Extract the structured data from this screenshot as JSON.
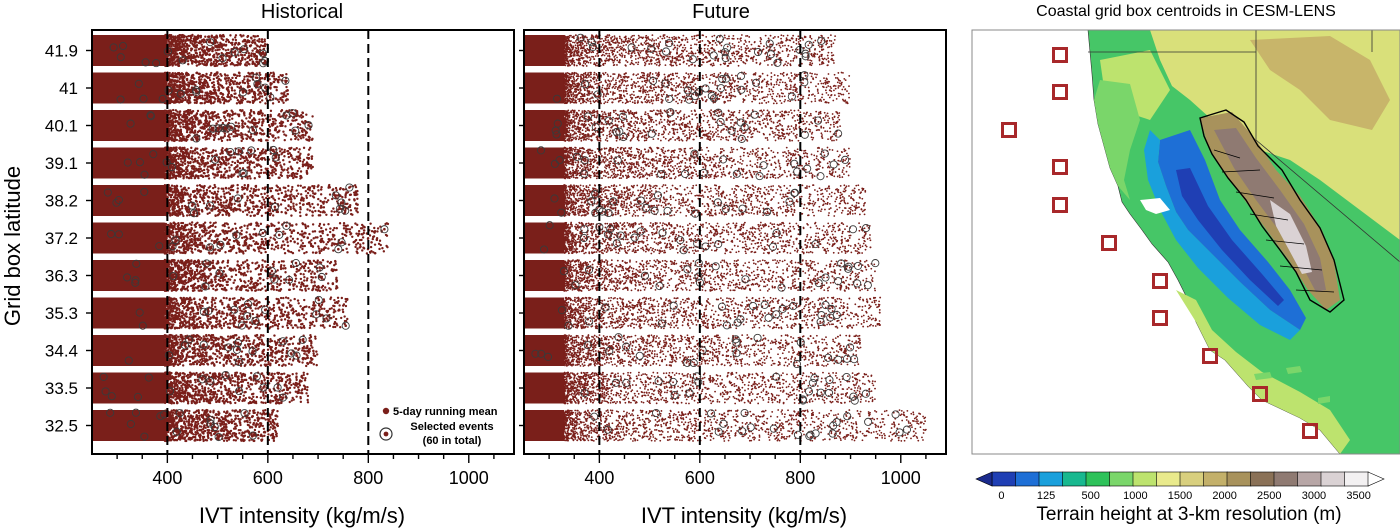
{
  "colors": {
    "dot": "#7a1f1a",
    "marker_ring": "#3a3a3a",
    "box": "#a8282a",
    "ocean": "#ffffff",
    "terrain": [
      "#1f3fb4",
      "#1e6fd6",
      "#1aa0dc",
      "#18b88f",
      "#2ec25a",
      "#7ad66a",
      "#bde36e",
      "#e9ea8c",
      "#d8cf7e",
      "#c3b06a",
      "#a8925c",
      "#8a7157",
      "#8f7a72",
      "#b7a6a6",
      "#dad2d4",
      "#f3f1f2"
    ]
  },
  "chart_data": [
    {
      "type": "scatter",
      "title": "Historical",
      "xlabel": "IVT intensity (kg/m/s)",
      "ylabel": "Grid box latitude",
      "xlim": [
        250,
        1090
      ],
      "xticks": [
        400,
        600,
        800,
        1000
      ],
      "yticks": [
        "41.9",
        "41",
        "40.1",
        "39.1",
        "38.2",
        "37.2",
        "36.3",
        "35.3",
        "34.4",
        "33.5",
        "32.5"
      ],
      "threshold_lines": [
        400,
        600,
        800
      ],
      "dot_max_ivt": [
        600,
        640,
        690,
        690,
        780,
        840,
        740,
        760,
        700,
        680,
        620
      ],
      "grid": false,
      "legend": {
        "position": "bottom-right",
        "entries": [
          "5-day running mean",
          "Selected events",
          "(60 in total)"
        ]
      }
    },
    {
      "type": "scatter",
      "title": "Future",
      "xlabel": "IVT intensity (kg/m/s)",
      "xlim": [
        250,
        1090
      ],
      "xticks": [
        400,
        600,
        800,
        1000
      ],
      "threshold_lines": [
        400,
        600,
        800
      ],
      "dot_max_ivt": [
        870,
        900,
        880,
        900,
        930,
        940,
        950,
        960,
        920,
        950,
        1050
      ],
      "grid": false
    },
    {
      "type": "map",
      "title": "Coastal grid box centroids in CESM-LENS",
      "colorbar": {
        "label": "Terrain height at 3-km resolution (m)",
        "ticks": [
          "0",
          "125",
          "500",
          "1000",
          "1500",
          "2000",
          "2500",
          "3000",
          "3500"
        ]
      },
      "grid_boxes": 11
    }
  ],
  "panels": {
    "historical_title": "Historical",
    "future_title": "Future",
    "xlabel": "IVT intensity (kg/m/s)",
    "ylabel": "Grid box latitude",
    "legend_dots": "5-day running mean",
    "legend_sel_1": "Selected events",
    "legend_sel_2": "(60 in total)",
    "map_title": "Coastal grid box centroids in CESM-LENS",
    "colorbar_label": "Terrain height at 3-km resolution (m)"
  }
}
